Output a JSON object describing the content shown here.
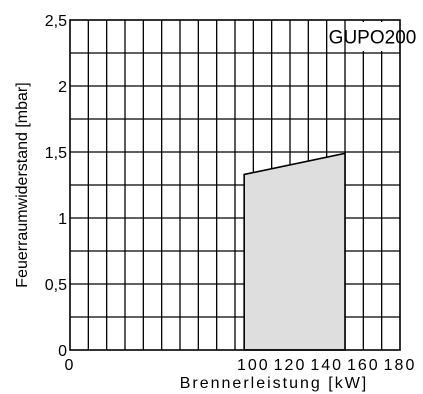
{
  "chart_data": {
    "type": "area",
    "title": "",
    "xlabel": "Brennerleistung  [kW]",
    "ylabel": "Feuerraumwiderstand [mbar]",
    "xlim": [
      0,
      180
    ],
    "ylim": [
      0,
      2.5
    ],
    "x_ticks": [
      0,
      100,
      120,
      140,
      160,
      180
    ],
    "x_tick_labels": [
      "0",
      "100",
      "120",
      "140",
      "160",
      "180"
    ],
    "y_ticks": [
      0,
      0.5,
      1,
      1.5,
      2,
      2.5
    ],
    "y_tick_labels": [
      "0",
      "0,5",
      "1",
      "1,5",
      "2",
      "2,5"
    ],
    "x_grid_step": 10,
    "y_grid_step": 0.25,
    "grid": true,
    "area_fill": "#dedede",
    "series": [
      {
        "name": "GUPO200",
        "points": [
          {
            "x": 95,
            "y": 0
          },
          {
            "x": 95,
            "y": 1.33
          },
          {
            "x": 150,
            "y": 1.49
          },
          {
            "x": 150,
            "y": 0
          }
        ]
      }
    ],
    "annotation": "GUPO200",
    "legend": "none"
  }
}
